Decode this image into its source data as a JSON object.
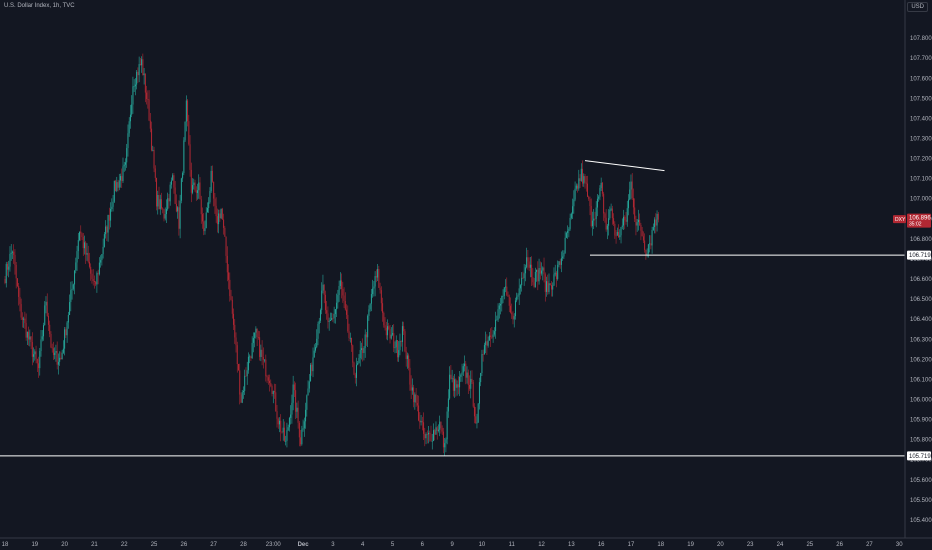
{
  "header": {
    "title": "U.S. Dollar Index, 1h, TVC",
    "currency": "USD"
  },
  "colors": {
    "background": "#131722",
    "up": "#26a69a",
    "down": "#b22833",
    "line": "#ffffff",
    "text": "#b2b5be"
  },
  "price_tag": {
    "symbol": "DXY",
    "price": "106.896",
    "countdown": "35:02"
  },
  "chart_data": {
    "type": "candlestick",
    "ylim": [
      105.31,
      107.99
    ],
    "y_ticks": [
      "107.800",
      "107.700",
      "107.600",
      "107.500",
      "107.400",
      "107.300",
      "107.200",
      "107.100",
      "107.000",
      "106.900",
      "106.800",
      "106.700",
      "106.600",
      "106.500",
      "106.400",
      "106.300",
      "106.200",
      "106.100",
      "106.000",
      "105.900",
      "105.800",
      "105.700",
      "105.600",
      "105.500",
      "105.400"
    ],
    "x_ticks": [
      {
        "label": "18",
        "bar": 0
      },
      {
        "label": "19",
        "bar": 24
      },
      {
        "label": "20",
        "bar": 48
      },
      {
        "label": "21",
        "bar": 72
      },
      {
        "label": "22",
        "bar": 96
      },
      {
        "label": "25",
        "bar": 120
      },
      {
        "label": "26",
        "bar": 144
      },
      {
        "label": "27",
        "bar": 168
      },
      {
        "label": "28",
        "bar": 192
      },
      {
        "label": "23:00",
        "bar": 216
      },
      {
        "label": "Dec",
        "bar": 240,
        "bold": true
      },
      {
        "label": "3",
        "bar": 264
      },
      {
        "label": "4",
        "bar": 288
      },
      {
        "label": "5",
        "bar": 312
      },
      {
        "label": "6",
        "bar": 336
      },
      {
        "label": "9",
        "bar": 360
      },
      {
        "label": "10",
        "bar": 384
      },
      {
        "label": "11",
        "bar": 408
      },
      {
        "label": "12",
        "bar": 432
      },
      {
        "label": "13",
        "bar": 456
      },
      {
        "label": "16",
        "bar": 480
      },
      {
        "label": "17",
        "bar": 504
      },
      {
        "label": "18",
        "bar": 528
      },
      {
        "label": "19",
        "bar": 552
      },
      {
        "label": "20",
        "bar": 576
      },
      {
        "label": "23",
        "bar": 600
      },
      {
        "label": "24",
        "bar": 624
      },
      {
        "label": "25",
        "bar": 648
      },
      {
        "label": "26",
        "bar": 672
      },
      {
        "label": "27",
        "bar": 696
      },
      {
        "label": "30",
        "bar": 720
      }
    ],
    "anchors": [
      [
        0,
        106.62
      ],
      [
        6,
        106.75
      ],
      [
        12,
        106.45
      ],
      [
        20,
        106.28
      ],
      [
        27,
        106.15
      ],
      [
        33,
        106.5
      ],
      [
        38,
        106.22
      ],
      [
        45,
        106.2
      ],
      [
        54,
        106.55
      ],
      [
        60,
        106.85
      ],
      [
        66,
        106.7
      ],
      [
        72,
        106.55
      ],
      [
        80,
        106.8
      ],
      [
        88,
        107.05
      ],
      [
        97,
        107.15
      ],
      [
        103,
        107.58
      ],
      [
        110,
        107.68
      ],
      [
        116,
        107.42
      ],
      [
        122,
        107.0
      ],
      [
        128,
        106.92
      ],
      [
        135,
        107.1
      ],
      [
        140,
        106.88
      ],
      [
        146,
        107.45
      ],
      [
        150,
        107.05
      ],
      [
        156,
        107.05
      ],
      [
        160,
        106.82
      ],
      [
        166,
        107.1
      ],
      [
        170,
        106.88
      ],
      [
        174,
        106.95
      ],
      [
        180,
        106.6
      ],
      [
        186,
        106.25
      ],
      [
        190,
        106.0
      ],
      [
        196,
        106.2
      ],
      [
        202,
        106.32
      ],
      [
        208,
        106.18
      ],
      [
        214,
        106.1
      ],
      [
        220,
        105.9
      ],
      [
        226,
        105.78
      ],
      [
        232,
        106.05
      ],
      [
        238,
        105.8
      ],
      [
        244,
        106.05
      ],
      [
        250,
        106.3
      ],
      [
        256,
        106.55
      ],
      [
        260,
        106.35
      ],
      [
        266,
        106.45
      ],
      [
        270,
        106.58
      ],
      [
        274,
        106.42
      ],
      [
        282,
        106.12
      ],
      [
        290,
        106.3
      ],
      [
        296,
        106.55
      ],
      [
        300,
        106.62
      ],
      [
        306,
        106.35
      ],
      [
        312,
        106.3
      ],
      [
        316,
        106.25
      ],
      [
        320,
        106.35
      ],
      [
        326,
        106.1
      ],
      [
        332,
        105.95
      ],
      [
        338,
        105.8
      ],
      [
        344,
        105.83
      ],
      [
        350,
        105.88
      ],
      [
        354,
        105.75
      ],
      [
        358,
        106.1
      ],
      [
        364,
        106.05
      ],
      [
        370,
        106.15
      ],
      [
        376,
        106.05
      ],
      [
        380,
        105.85
      ],
      [
        384,
        106.25
      ],
      [
        390,
        106.32
      ],
      [
        396,
        106.4
      ],
      [
        402,
        106.55
      ],
      [
        408,
        106.4
      ],
      [
        414,
        106.55
      ],
      [
        420,
        106.72
      ],
      [
        426,
        106.6
      ],
      [
        432,
        106.65
      ],
      [
        436,
        106.55
      ],
      [
        444,
        106.62
      ],
      [
        450,
        106.75
      ],
      [
        456,
        106.9
      ],
      [
        460,
        107.05
      ],
      [
        464,
        107.12
      ],
      [
        468,
        107.05
      ],
      [
        472,
        106.9
      ],
      [
        476,
        106.95
      ],
      [
        480,
        107.05
      ],
      [
        484,
        106.85
      ],
      [
        488,
        106.95
      ],
      [
        492,
        106.8
      ],
      [
        496,
        106.85
      ],
      [
        500,
        106.9
      ],
      [
        504,
        107.08
      ],
      [
        508,
        106.88
      ],
      [
        512,
        106.85
      ],
      [
        516,
        106.75
      ],
      [
        520,
        106.8
      ],
      [
        523,
        106.9
      ],
      [
        526,
        106.896
      ]
    ],
    "lines": [
      {
        "type": "horizontal",
        "y": 105.719,
        "label": "105.719"
      },
      {
        "type": "ray",
        "y": 106.719,
        "from_bar": 471,
        "label": "106.719"
      },
      {
        "type": "trend",
        "from": [
          467,
          107.19
        ],
        "to": [
          531,
          107.14
        ]
      }
    ]
  }
}
